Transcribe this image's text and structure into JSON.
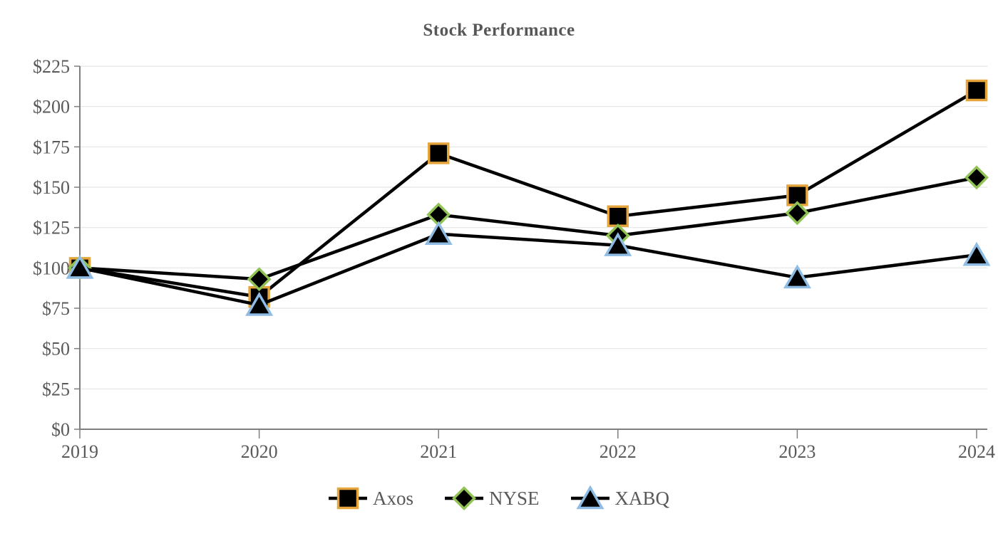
{
  "chart_data": {
    "type": "line",
    "title": "Stock Performance",
    "categories": [
      "2019",
      "2020",
      "2021",
      "2022",
      "2023",
      "2024"
    ],
    "series": [
      {
        "name": "Axos",
        "marker": "square",
        "marker_color": "#E6A43C",
        "line_color": "#000000",
        "values": [
          100,
          82,
          171,
          132,
          145,
          210
        ]
      },
      {
        "name": "NYSE",
        "marker": "diamond",
        "marker_color": "#90C353",
        "line_color": "#000000",
        "values": [
          100,
          93,
          133,
          120,
          134,
          156
        ]
      },
      {
        "name": "XABQ",
        "marker": "triangle",
        "marker_color": "#8EBCE4",
        "line_color": "#000000",
        "values": [
          100,
          77,
          121,
          114,
          94,
          108
        ]
      }
    ],
    "y_axis": {
      "min": 0,
      "max": 225,
      "step": 25,
      "tick_labels": [
        "$0",
        "$25",
        "$50",
        "$75",
        "$100",
        "$125",
        "$150",
        "$175",
        "$200",
        "$225"
      ]
    },
    "x_axis": {
      "tick_labels": [
        "2019",
        "2020",
        "2021",
        "2022",
        "2023",
        "2024"
      ]
    },
    "grid": true,
    "legend_position": "bottom",
    "colors": {
      "text": "#595959",
      "axis": "#7F7F7F",
      "gridline": "#E4E4E4",
      "marker_fill": "#000000"
    }
  }
}
